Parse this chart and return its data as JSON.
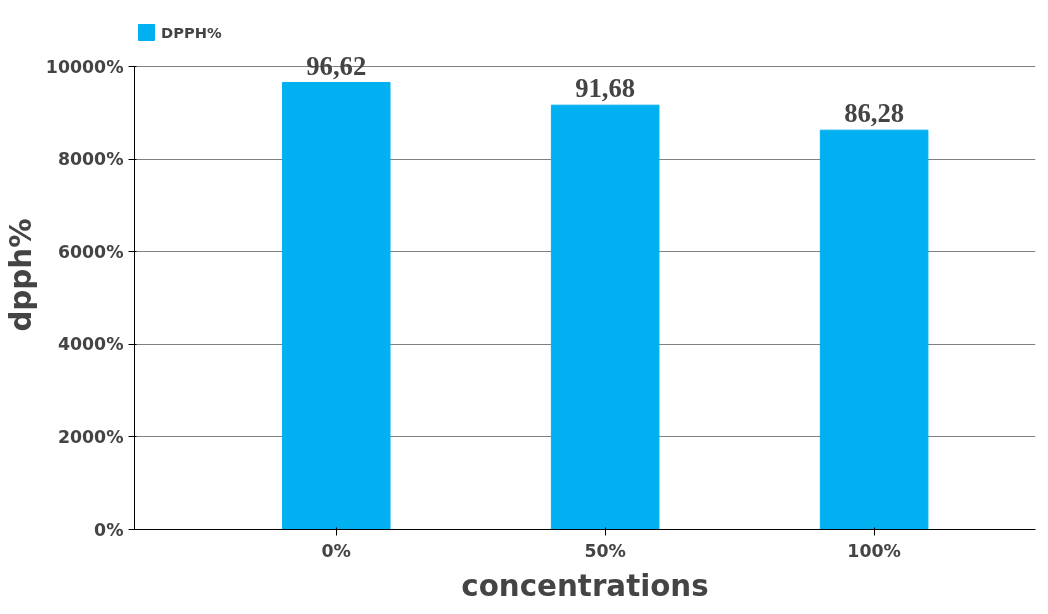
{
  "chart_data": {
    "type": "bar",
    "xlabel": "concentrations",
    "ylabel": "dpph%",
    "categories": [
      "0%",
      "50%",
      "100%"
    ],
    "series": [
      {
        "name": "DPPH%",
        "color": "#00b0f0",
        "values": [
          9660,
          9170,
          8630
        ]
      }
    ],
    "value_labels": [
      "96,62",
      "91,68",
      "86,28"
    ],
    "ylim": [
      0,
      10000
    ],
    "yticks": [
      {
        "value": 0,
        "label": "0%"
      },
      {
        "value": 2000,
        "label": "2000%"
      },
      {
        "value": 4000,
        "label": "4000%"
      },
      {
        "value": 6000,
        "label": "6000%"
      },
      {
        "value": 8000,
        "label": "8000%"
      },
      {
        "value": 10000,
        "label": "10000%"
      }
    ],
    "grid": "y",
    "legend": "top left"
  }
}
